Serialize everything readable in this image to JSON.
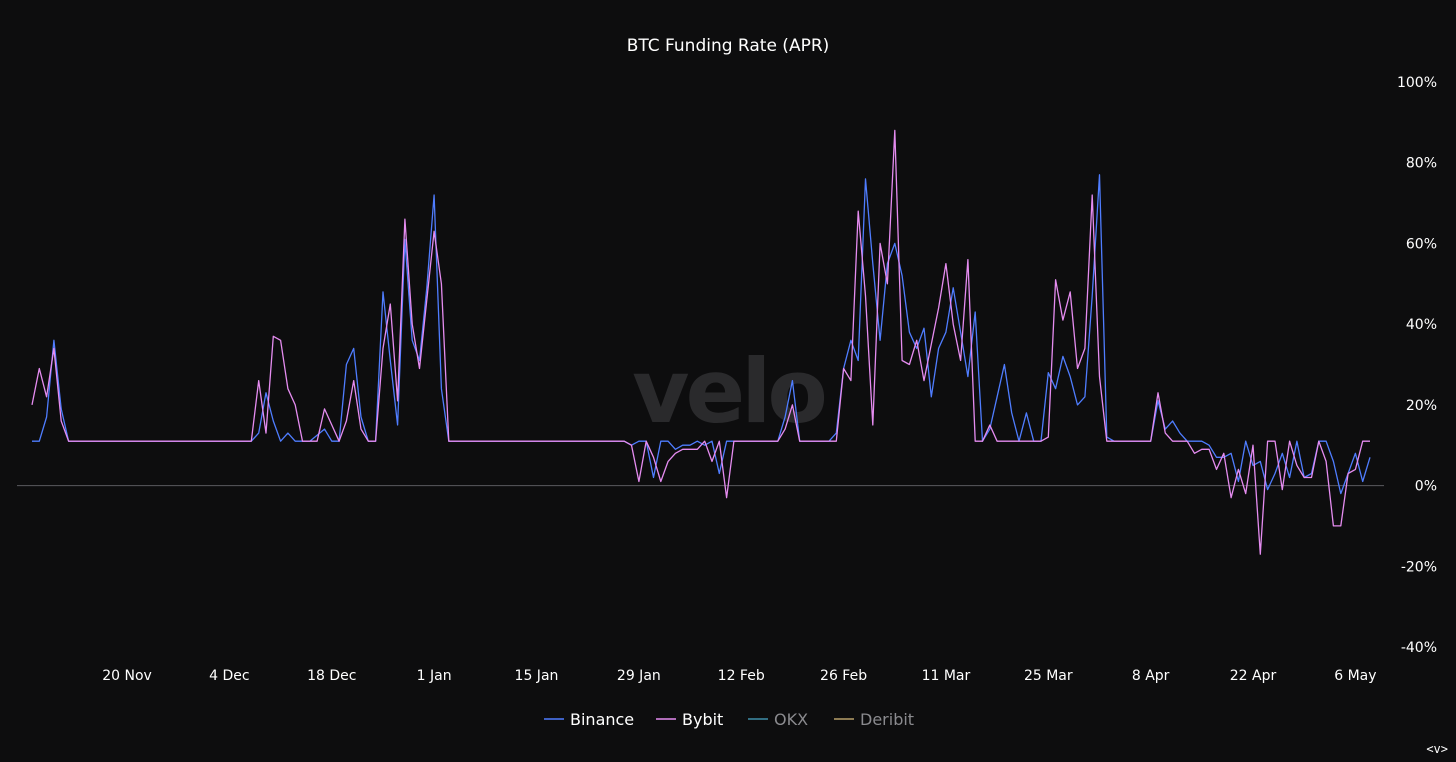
{
  "watermark": "velo",
  "corner_control": "<v>",
  "colors": {
    "background": "#0d0d0e",
    "zero_line": "#5a5a5e",
    "text": "#ffffff",
    "legend_inactive": "#8a8a8e"
  },
  "chart_data": {
    "type": "line",
    "title": "BTC Funding Rate (APR)",
    "xlabel": "",
    "ylabel": "",
    "y_unit": "%",
    "ylim": [
      -40,
      100
    ],
    "yticks": [
      100,
      80,
      60,
      40,
      20,
      0,
      -20,
      -40
    ],
    "ytick_labels": [
      "100%",
      "80%",
      "60%",
      "40%",
      "20%",
      "0%",
      "-20%",
      "-40%"
    ],
    "x_range": [
      "2023-11-07",
      "2024-05-08"
    ],
    "xticks": [
      {
        "date": "2023-11-20",
        "label": "20 Nov"
      },
      {
        "date": "2023-12-04",
        "label": "4 Dec"
      },
      {
        "date": "2023-12-18",
        "label": "18 Dec"
      },
      {
        "date": "2024-01-01",
        "label": "1 Jan"
      },
      {
        "date": "2024-01-15",
        "label": "15 Jan"
      },
      {
        "date": "2024-01-29",
        "label": "29 Jan"
      },
      {
        "date": "2024-02-12",
        "label": "12 Feb"
      },
      {
        "date": "2024-02-26",
        "label": "26 Feb"
      },
      {
        "date": "2024-03-11",
        "label": "11 Mar"
      },
      {
        "date": "2024-03-25",
        "label": "25 Mar"
      },
      {
        "date": "2024-04-08",
        "label": "8 Apr"
      },
      {
        "date": "2024-04-22",
        "label": "22 Apr"
      },
      {
        "date": "2024-05-06",
        "label": "6 May"
      }
    ],
    "grid": false,
    "legend_position": "bottom-center",
    "series": [
      {
        "name": "Binance",
        "color": "#4f7dff",
        "visible": true,
        "points": [
          [
            "2023-11-07",
            11
          ],
          [
            "2023-11-08",
            11
          ],
          [
            "2023-11-09",
            17
          ],
          [
            "2023-11-10",
            36
          ],
          [
            "2023-11-11",
            19
          ],
          [
            "2023-11-12",
            11
          ],
          [
            "2023-11-20",
            11
          ],
          [
            "2023-12-01",
            11
          ],
          [
            "2023-12-07",
            11
          ],
          [
            "2023-12-08",
            13
          ],
          [
            "2023-12-09",
            23
          ],
          [
            "2023-12-10",
            16
          ],
          [
            "2023-12-11",
            11
          ],
          [
            "2023-12-12",
            13
          ],
          [
            "2023-12-13",
            11
          ],
          [
            "2023-12-15",
            11
          ],
          [
            "2023-12-17",
            14
          ],
          [
            "2023-12-18",
            11
          ],
          [
            "2023-12-19",
            11
          ],
          [
            "2023-12-20",
            30
          ],
          [
            "2023-12-21",
            34
          ],
          [
            "2023-12-22",
            17
          ],
          [
            "2023-12-23",
            11
          ],
          [
            "2023-12-24",
            11
          ],
          [
            "2023-12-25",
            48
          ],
          [
            "2023-12-26",
            31
          ],
          [
            "2023-12-27",
            15
          ],
          [
            "2023-12-28",
            61
          ],
          [
            "2023-12-29",
            36
          ],
          [
            "2023-12-30",
            31
          ],
          [
            "2023-12-31",
            49
          ],
          [
            "2024-01-01",
            72
          ],
          [
            "2024-01-02",
            24
          ],
          [
            "2024-01-03",
            11
          ],
          [
            "2024-01-15",
            11
          ],
          [
            "2024-01-27",
            11
          ],
          [
            "2024-01-28",
            10
          ],
          [
            "2024-01-29",
            11
          ],
          [
            "2024-01-30",
            11
          ],
          [
            "2024-01-31",
            2
          ],
          [
            "2024-02-01",
            11
          ],
          [
            "2024-02-02",
            11
          ],
          [
            "2024-02-03",
            9
          ],
          [
            "2024-02-04",
            10
          ],
          [
            "2024-02-05",
            10
          ],
          [
            "2024-02-06",
            11
          ],
          [
            "2024-02-07",
            10
          ],
          [
            "2024-02-08",
            11
          ],
          [
            "2024-02-09",
            3
          ],
          [
            "2024-02-10",
            11
          ],
          [
            "2024-02-14",
            11
          ],
          [
            "2024-02-17",
            11
          ],
          [
            "2024-02-18",
            17
          ],
          [
            "2024-02-19",
            26
          ],
          [
            "2024-02-20",
            11
          ],
          [
            "2024-02-24",
            11
          ],
          [
            "2024-02-25",
            13
          ],
          [
            "2024-02-26",
            29
          ],
          [
            "2024-02-27",
            36
          ],
          [
            "2024-02-28",
            31
          ],
          [
            "2024-02-29",
            76
          ],
          [
            "2024-03-01",
            55
          ],
          [
            "2024-03-02",
            36
          ],
          [
            "2024-03-03",
            55
          ],
          [
            "2024-03-04",
            60
          ],
          [
            "2024-03-05",
            52
          ],
          [
            "2024-03-06",
            38
          ],
          [
            "2024-03-07",
            34
          ],
          [
            "2024-03-08",
            39
          ],
          [
            "2024-03-09",
            22
          ],
          [
            "2024-03-10",
            34
          ],
          [
            "2024-03-11",
            38
          ],
          [
            "2024-03-12",
            49
          ],
          [
            "2024-03-13",
            38
          ],
          [
            "2024-03-14",
            27
          ],
          [
            "2024-03-15",
            43
          ],
          [
            "2024-03-16",
            11
          ],
          [
            "2024-03-17",
            14
          ],
          [
            "2024-03-18",
            22
          ],
          [
            "2024-03-19",
            30
          ],
          [
            "2024-03-20",
            18
          ],
          [
            "2024-03-21",
            11
          ],
          [
            "2024-03-22",
            18
          ],
          [
            "2024-03-23",
            11
          ],
          [
            "2024-03-24",
            11
          ],
          [
            "2024-03-25",
            28
          ],
          [
            "2024-03-26",
            24
          ],
          [
            "2024-03-27",
            32
          ],
          [
            "2024-03-28",
            27
          ],
          [
            "2024-03-29",
            20
          ],
          [
            "2024-03-30",
            22
          ],
          [
            "2024-03-31",
            47
          ],
          [
            "2024-04-01",
            77
          ],
          [
            "2024-04-02",
            12
          ],
          [
            "2024-04-03",
            11
          ],
          [
            "2024-04-08",
            11
          ],
          [
            "2024-04-09",
            21
          ],
          [
            "2024-04-10",
            14
          ],
          [
            "2024-04-11",
            16
          ],
          [
            "2024-04-12",
            13
          ],
          [
            "2024-04-13",
            11
          ],
          [
            "2024-04-14",
            11
          ],
          [
            "2024-04-15",
            11
          ],
          [
            "2024-04-16",
            10
          ],
          [
            "2024-04-17",
            7
          ],
          [
            "2024-04-18",
            7
          ],
          [
            "2024-04-19",
            8
          ],
          [
            "2024-04-20",
            1
          ],
          [
            "2024-04-21",
            11
          ],
          [
            "2024-04-22",
            5
          ],
          [
            "2024-04-23",
            6
          ],
          [
            "2024-04-24",
            -1
          ],
          [
            "2024-04-25",
            3
          ],
          [
            "2024-04-26",
            8
          ],
          [
            "2024-04-27",
            2
          ],
          [
            "2024-04-28",
            11
          ],
          [
            "2024-04-29",
            2
          ],
          [
            "2024-04-30",
            3
          ],
          [
            "2024-05-01",
            11
          ],
          [
            "2024-05-02",
            11
          ],
          [
            "2024-05-03",
            6
          ],
          [
            "2024-05-04",
            -2
          ],
          [
            "2024-05-05",
            3
          ],
          [
            "2024-05-06",
            8
          ],
          [
            "2024-05-07",
            1
          ],
          [
            "2024-05-08",
            7
          ]
        ]
      },
      {
        "name": "Bybit",
        "color": "#e58cf0",
        "visible": true,
        "points": [
          [
            "2023-11-07",
            20
          ],
          [
            "2023-11-08",
            29
          ],
          [
            "2023-11-09",
            22
          ],
          [
            "2023-11-10",
            34
          ],
          [
            "2023-11-11",
            16
          ],
          [
            "2023-11-12",
            11
          ],
          [
            "2023-11-20",
            11
          ],
          [
            "2023-12-01",
            11
          ],
          [
            "2023-12-07",
            11
          ],
          [
            "2023-12-08",
            26
          ],
          [
            "2023-12-09",
            13
          ],
          [
            "2023-12-10",
            37
          ],
          [
            "2023-12-11",
            36
          ],
          [
            "2023-12-12",
            24
          ],
          [
            "2023-12-13",
            20
          ],
          [
            "2023-12-14",
            11
          ],
          [
            "2023-12-16",
            11
          ],
          [
            "2023-12-17",
            19
          ],
          [
            "2023-12-18",
            15
          ],
          [
            "2023-12-19",
            11
          ],
          [
            "2023-12-20",
            16
          ],
          [
            "2023-12-21",
            26
          ],
          [
            "2023-12-22",
            14
          ],
          [
            "2023-12-23",
            11
          ],
          [
            "2023-12-24",
            11
          ],
          [
            "2023-12-25",
            34
          ],
          [
            "2023-12-26",
            45
          ],
          [
            "2023-12-27",
            21
          ],
          [
            "2023-12-28",
            66
          ],
          [
            "2023-12-29",
            40
          ],
          [
            "2023-12-30",
            29
          ],
          [
            "2023-12-31",
            46
          ],
          [
            "2024-01-01",
            63
          ],
          [
            "2024-01-02",
            50
          ],
          [
            "2024-01-03",
            11
          ],
          [
            "2024-01-15",
            11
          ],
          [
            "2024-01-27",
            11
          ],
          [
            "2024-01-28",
            10
          ],
          [
            "2024-01-29",
            1
          ],
          [
            "2024-01-30",
            11
          ],
          [
            "2024-01-31",
            7
          ],
          [
            "2024-02-01",
            1
          ],
          [
            "2024-02-02",
            6
          ],
          [
            "2024-02-03",
            8
          ],
          [
            "2024-02-04",
            9
          ],
          [
            "2024-02-05",
            9
          ],
          [
            "2024-02-06",
            9
          ],
          [
            "2024-02-07",
            11
          ],
          [
            "2024-02-08",
            6
          ],
          [
            "2024-02-09",
            11
          ],
          [
            "2024-02-10",
            -3
          ],
          [
            "2024-02-11",
            11
          ],
          [
            "2024-02-14",
            11
          ],
          [
            "2024-02-17",
            11
          ],
          [
            "2024-02-18",
            14
          ],
          [
            "2024-02-19",
            20
          ],
          [
            "2024-02-20",
            11
          ],
          [
            "2024-02-24",
            11
          ],
          [
            "2024-02-25",
            11
          ],
          [
            "2024-02-26",
            29
          ],
          [
            "2024-02-27",
            26
          ],
          [
            "2024-02-28",
            68
          ],
          [
            "2024-02-29",
            47
          ],
          [
            "2024-03-01",
            15
          ],
          [
            "2024-03-02",
            60
          ],
          [
            "2024-03-03",
            50
          ],
          [
            "2024-03-04",
            88
          ],
          [
            "2024-03-05",
            31
          ],
          [
            "2024-03-06",
            30
          ],
          [
            "2024-03-07",
            36
          ],
          [
            "2024-03-08",
            26
          ],
          [
            "2024-03-09",
            35
          ],
          [
            "2024-03-10",
            44
          ],
          [
            "2024-03-11",
            55
          ],
          [
            "2024-03-12",
            40
          ],
          [
            "2024-03-13",
            31
          ],
          [
            "2024-03-14",
            56
          ],
          [
            "2024-03-15",
            11
          ],
          [
            "2024-03-16",
            11
          ],
          [
            "2024-03-17",
            15
          ],
          [
            "2024-03-18",
            11
          ],
          [
            "2024-03-24",
            11
          ],
          [
            "2024-03-25",
            12
          ],
          [
            "2024-03-26",
            51
          ],
          [
            "2024-03-27",
            41
          ],
          [
            "2024-03-28",
            48
          ],
          [
            "2024-03-29",
            29
          ],
          [
            "2024-03-30",
            34
          ],
          [
            "2024-03-31",
            72
          ],
          [
            "2024-04-01",
            27
          ],
          [
            "2024-04-02",
            11
          ],
          [
            "2024-04-08",
            11
          ],
          [
            "2024-04-09",
            23
          ],
          [
            "2024-04-10",
            13
          ],
          [
            "2024-04-11",
            11
          ],
          [
            "2024-04-12",
            11
          ],
          [
            "2024-04-13",
            11
          ],
          [
            "2024-04-14",
            8
          ],
          [
            "2024-04-15",
            9
          ],
          [
            "2024-04-16",
            9
          ],
          [
            "2024-04-17",
            4
          ],
          [
            "2024-04-18",
            8
          ],
          [
            "2024-04-19",
            -3
          ],
          [
            "2024-04-20",
            4
          ],
          [
            "2024-04-21",
            -2
          ],
          [
            "2024-04-22",
            10
          ],
          [
            "2024-04-23",
            -17
          ],
          [
            "2024-04-24",
            11
          ],
          [
            "2024-04-25",
            11
          ],
          [
            "2024-04-26",
            -1
          ],
          [
            "2024-04-27",
            11
          ],
          [
            "2024-04-28",
            5
          ],
          [
            "2024-04-29",
            2
          ],
          [
            "2024-04-30",
            2
          ],
          [
            "2024-05-01",
            11
          ],
          [
            "2024-05-02",
            6
          ],
          [
            "2024-05-03",
            -10
          ],
          [
            "2024-05-04",
            -10
          ],
          [
            "2024-05-05",
            3
          ],
          [
            "2024-05-06",
            4
          ],
          [
            "2024-05-07",
            11
          ],
          [
            "2024-05-08",
            11
          ]
        ]
      },
      {
        "name": "OKX",
        "color": "#3f8fa8",
        "visible": false,
        "points": []
      },
      {
        "name": "Deribit",
        "color": "#b8a06a",
        "visible": false,
        "points": []
      }
    ]
  }
}
